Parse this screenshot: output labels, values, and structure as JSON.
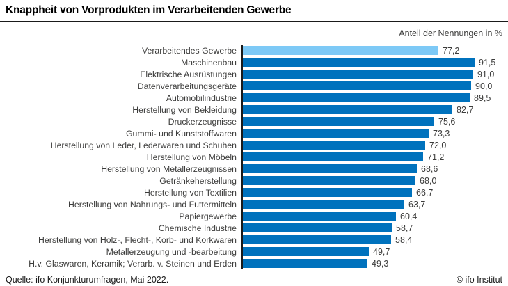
{
  "title": "Knappheit von Vorprodukten im Verarbeitenden Gewerbe",
  "axis_note": "Anteil der Nennungen in %",
  "footer": {
    "source": "Quelle: ifo Konjunkturumfragen, Mai 2022.",
    "copyright": "© ifo Institut"
  },
  "colors": {
    "bar_default": "#0072bd",
    "bar_highlight": "#7dc9f6",
    "axis_line": "#1a1a1a",
    "text": "#3c3c3b"
  },
  "chart_data": {
    "type": "bar",
    "orientation": "horizontal",
    "title": "Knappheit von Vorprodukten im Verarbeitenden Gewerbe",
    "xlabel": "Anteil der Nennungen in %",
    "xlim": [
      0,
      100
    ],
    "grid": false,
    "legend": false,
    "highlight_index": 0,
    "categories": [
      "Verarbeitendes Gewerbe",
      "Maschinenbau",
      "Elektrische Ausrüstungen",
      "Datenverarbeitungsgeräte",
      "Automobilindustrie",
      "Herstellung von Bekleidung",
      "Druckerzeugnisse",
      "Gummi- und Kunststoffwaren",
      "Herstellung von Leder, Lederwaren und Schuhen",
      "Herstellung von Möbeln",
      "Herstellung von Metallerzeugnissen",
      "Getränkeherstellung",
      "Herstellung von Textilien",
      "Herstellung von Nahrungs- und Futtermitteln",
      "Papiergewerbe",
      "Chemische Industrie",
      "Herstellung von Holz-, Flecht-, Korb- und Korkwaren",
      "Metallerzeugung und -bearbeitung",
      "H.v. Glaswaren, Keramik; Verarb. v. Steinen und Erden"
    ],
    "values": [
      77.2,
      91.5,
      91.0,
      90.0,
      89.5,
      82.7,
      75.6,
      73.3,
      72.0,
      71.2,
      68.6,
      68.0,
      66.7,
      63.7,
      60.4,
      58.7,
      58.4,
      49.7,
      49.3
    ],
    "value_labels": [
      "77,2",
      "91,5",
      "91,0",
      "90,0",
      "89,5",
      "82,7",
      "75,6",
      "73,3",
      "72,0",
      "71,2",
      "68,6",
      "68,0",
      "66,7",
      "63,7",
      "60,4",
      "58,7",
      "58,4",
      "49,7",
      "49,3"
    ]
  }
}
